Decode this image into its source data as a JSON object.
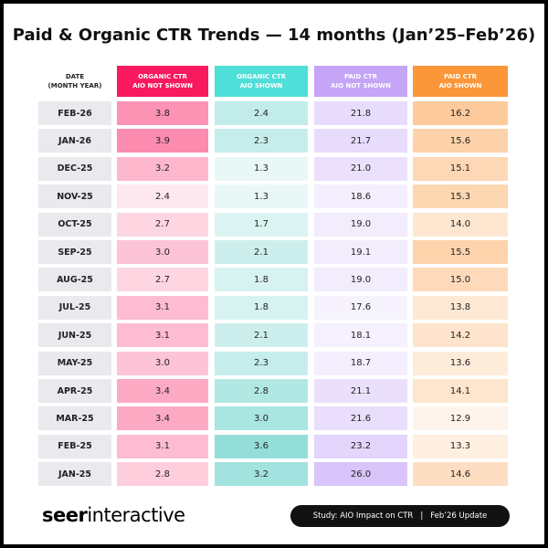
{
  "header": {
    "title": "Paid & Organic CTR Trends — 14 months (Jan’25–Feb’26)"
  },
  "table": {
    "columns": [
      {
        "lines": [
          "DATE",
          "(MONTH YEAR)"
        ]
      },
      {
        "lines": [
          "ORGANIC CTR",
          "AIO NOT SHOWN"
        ],
        "color": "#f8195f",
        "tint": [
          248,
          25,
          95
        ]
      },
      {
        "lines": [
          "ORGANIC CTR",
          "AIO SHOWN"
        ],
        "color": "#4fdfd8",
        "tint": [
          40,
          190,
          180
        ]
      },
      {
        "lines": [
          "PAID CTR",
          "AIO NOT SHOWN"
        ],
        "color": "#c4a5f6",
        "tint": [
          180,
          140,
          245
        ]
      },
      {
        "lines": [
          "PAID CTR",
          "AIO SHOWN"
        ],
        "color": "#fb9639",
        "tint": [
          251,
          150,
          57
        ]
      }
    ],
    "rows": [
      [
        "FEB-26",
        "3.8",
        "2.4",
        "21.8",
        "16.2"
      ],
      [
        "JAN-26",
        "3.9",
        "2.3",
        "21.7",
        "15.6"
      ],
      [
        "DEC-25",
        "3.2",
        "1.3",
        "21.0",
        "15.1"
      ],
      [
        "NOV-25",
        "2.4",
        "1.3",
        "18.6",
        "15.3"
      ],
      [
        "OCT-25",
        "2.7",
        "1.7",
        "19.0",
        "14.0"
      ],
      [
        "SEP-25",
        "3.0",
        "2.1",
        "19.1",
        "15.5"
      ],
      [
        "AUG-25",
        "2.7",
        "1.8",
        "19.0",
        "15.0"
      ],
      [
        "JUL-25",
        "3.1",
        "1.8",
        "17.6",
        "13.8"
      ],
      [
        "JUN-25",
        "3.1",
        "2.1",
        "18.1",
        "14.2"
      ],
      [
        "MAY-25",
        "3.0",
        "2.3",
        "18.7",
        "13.6"
      ],
      [
        "APR-25",
        "3.4",
        "2.8",
        "21.1",
        "14.1"
      ],
      [
        "MAR-25",
        "3.4",
        "3.0",
        "21.6",
        "12.9"
      ],
      [
        "FEB-25",
        "3.1",
        "3.6",
        "23.2",
        "13.3"
      ],
      [
        "JAN-25",
        "2.8",
        "3.2",
        "26.0",
        "14.6"
      ]
    ]
  },
  "footer": {
    "logo": {
      "bold": "seer",
      "regular": "interactive"
    },
    "badge": [
      "Study: AIO Impact on CTR",
      "|",
      "Feb’26 Update"
    ]
  }
}
